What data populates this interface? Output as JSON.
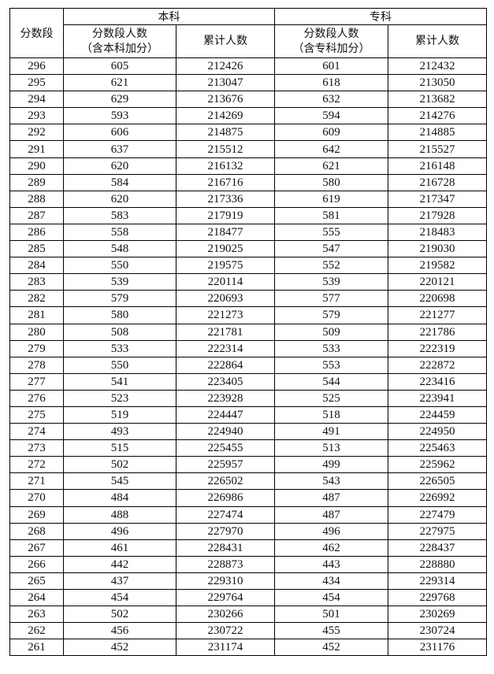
{
  "header": {
    "score_band": "分数段",
    "benke": "本科",
    "zhuanke": "专科",
    "benke_count_line1": "分数段人数",
    "benke_count_line2": "（含本科加分）",
    "benke_cumulative": "累计人数",
    "zhuanke_count_line1": "分数段人数",
    "zhuanke_count_line2": "（含专科加分）",
    "zhuanke_cumulative": "累计人数"
  },
  "rows": [
    [
      "296",
      "605",
      "212426",
      "601",
      "212432"
    ],
    [
      "295",
      "621",
      "213047",
      "618",
      "213050"
    ],
    [
      "294",
      "629",
      "213676",
      "632",
      "213682"
    ],
    [
      "293",
      "593",
      "214269",
      "594",
      "214276"
    ],
    [
      "292",
      "606",
      "214875",
      "609",
      "214885"
    ],
    [
      "291",
      "637",
      "215512",
      "642",
      "215527"
    ],
    [
      "290",
      "620",
      "216132",
      "621",
      "216148"
    ],
    [
      "289",
      "584",
      "216716",
      "580",
      "216728"
    ],
    [
      "288",
      "620",
      "217336",
      "619",
      "217347"
    ],
    [
      "287",
      "583",
      "217919",
      "581",
      "217928"
    ],
    [
      "286",
      "558",
      "218477",
      "555",
      "218483"
    ],
    [
      "285",
      "548",
      "219025",
      "547",
      "219030"
    ],
    [
      "284",
      "550",
      "219575",
      "552",
      "219582"
    ],
    [
      "283",
      "539",
      "220114",
      "539",
      "220121"
    ],
    [
      "282",
      "579",
      "220693",
      "577",
      "220698"
    ],
    [
      "281",
      "580",
      "221273",
      "579",
      "221277"
    ],
    [
      "280",
      "508",
      "221781",
      "509",
      "221786"
    ],
    [
      "279",
      "533",
      "222314",
      "533",
      "222319"
    ],
    [
      "278",
      "550",
      "222864",
      "553",
      "222872"
    ],
    [
      "277",
      "541",
      "223405",
      "544",
      "223416"
    ],
    [
      "276",
      "523",
      "223928",
      "525",
      "223941"
    ],
    [
      "275",
      "519",
      "224447",
      "518",
      "224459"
    ],
    [
      "274",
      "493",
      "224940",
      "491",
      "224950"
    ],
    [
      "273",
      "515",
      "225455",
      "513",
      "225463"
    ],
    [
      "272",
      "502",
      "225957",
      "499",
      "225962"
    ],
    [
      "271",
      "545",
      "226502",
      "543",
      "226505"
    ],
    [
      "270",
      "484",
      "226986",
      "487",
      "226992"
    ],
    [
      "269",
      "488",
      "227474",
      "487",
      "227479"
    ],
    [
      "268",
      "496",
      "227970",
      "496",
      "227975"
    ],
    [
      "267",
      "461",
      "228431",
      "462",
      "228437"
    ],
    [
      "266",
      "442",
      "228873",
      "443",
      "228880"
    ],
    [
      "265",
      "437",
      "229310",
      "434",
      "229314"
    ],
    [
      "264",
      "454",
      "229764",
      "454",
      "229768"
    ],
    [
      "263",
      "502",
      "230266",
      "501",
      "230269"
    ],
    [
      "262",
      "456",
      "230722",
      "455",
      "230724"
    ],
    [
      "261",
      "452",
      "231174",
      "452",
      "231176"
    ]
  ]
}
